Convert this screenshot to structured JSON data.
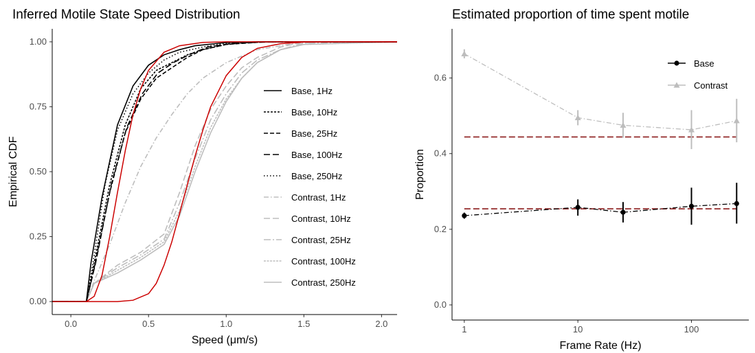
{
  "chart_data": [
    {
      "type": "line",
      "title": "Inferred Motile State Speed Distribution",
      "xlabel": "Speed (μm/s)",
      "ylabel": "Empirical CDF",
      "xlim": [
        -0.12,
        2.1
      ],
      "ylim": [
        -0.05,
        1.05
      ],
      "x_ticks": [
        0.0,
        0.5,
        1.0,
        1.5,
        2.0
      ],
      "x_tick_labels": [
        "0.0",
        "0.5",
        "1.0",
        "1.5",
        "2.0"
      ],
      "y_ticks": [
        0.0,
        0.25,
        0.5,
        0.75,
        1.0
      ],
      "y_tick_labels": [
        "0.00",
        "0.25",
        "0.50",
        "0.75",
        "1.00"
      ],
      "grid": false,
      "legend_position": "right-inside",
      "series": [
        {
          "name": "Base, 1Hz",
          "color": "#000000",
          "dash": "solid",
          "points": [
            [
              -0.12,
              0
            ],
            [
              0.1,
              0
            ],
            [
              0.13,
              0.15
            ],
            [
              0.2,
              0.4
            ],
            [
              0.3,
              0.68
            ],
            [
              0.4,
              0.83
            ],
            [
              0.5,
              0.91
            ],
            [
              0.6,
              0.95
            ],
            [
              0.7,
              0.97
            ],
            [
              0.8,
              0.985
            ],
            [
              1.0,
              0.997
            ],
            [
              1.2,
              1.0
            ],
            [
              2.1,
              1.0
            ]
          ]
        },
        {
          "name": "Base, 10Hz",
          "color": "#000000",
          "dash": "short-dash",
          "points": [
            [
              -0.12,
              0
            ],
            [
              0.1,
              0
            ],
            [
              0.15,
              0.15
            ],
            [
              0.25,
              0.45
            ],
            [
              0.35,
              0.68
            ],
            [
              0.45,
              0.82
            ],
            [
              0.55,
              0.89
            ],
            [
              0.65,
              0.92
            ],
            [
              0.75,
              0.95
            ],
            [
              0.85,
              0.97
            ],
            [
              1.0,
              0.99
            ],
            [
              1.2,
              1.0
            ],
            [
              2.1,
              1.0
            ]
          ]
        },
        {
          "name": "Base, 25Hz",
          "color": "#000000",
          "dash": "dash",
          "points": [
            [
              -0.12,
              0
            ],
            [
              0.1,
              0
            ],
            [
              0.15,
              0.13
            ],
            [
              0.25,
              0.42
            ],
            [
              0.35,
              0.65
            ],
            [
              0.45,
              0.78
            ],
            [
              0.55,
              0.86
            ],
            [
              0.65,
              0.9
            ],
            [
              0.75,
              0.94
            ],
            [
              0.85,
              0.97
            ],
            [
              1.0,
              0.99
            ],
            [
              1.25,
              1.0
            ],
            [
              2.1,
              1.0
            ]
          ]
        },
        {
          "name": "Base, 100Hz",
          "color": "#000000",
          "dash": "long-dash",
          "points": [
            [
              -0.12,
              0
            ],
            [
              0.1,
              0
            ],
            [
              0.16,
              0.15
            ],
            [
              0.26,
              0.45
            ],
            [
              0.36,
              0.67
            ],
            [
              0.46,
              0.8
            ],
            [
              0.56,
              0.88
            ],
            [
              0.66,
              0.92
            ],
            [
              0.76,
              0.95
            ],
            [
              0.88,
              0.98
            ],
            [
              1.05,
              0.995
            ],
            [
              1.3,
              1.0
            ],
            [
              2.1,
              1.0
            ]
          ]
        },
        {
          "name": "Base, 250Hz",
          "color": "#000000",
          "dash": "dotted",
          "points": [
            [
              -0.12,
              0
            ],
            [
              0.1,
              0
            ],
            [
              0.14,
              0.14
            ],
            [
              0.22,
              0.45
            ],
            [
              0.3,
              0.66
            ],
            [
              0.4,
              0.8
            ],
            [
              0.5,
              0.88
            ],
            [
              0.6,
              0.93
            ],
            [
              0.7,
              0.96
            ],
            [
              0.85,
              0.98
            ],
            [
              1.0,
              0.995
            ],
            [
              1.2,
              1.0
            ],
            [
              2.1,
              1.0
            ]
          ]
        },
        {
          "name": "Contrast, 1Hz",
          "color": "#bdbdbd",
          "dash": "dash-dot",
          "points": [
            [
              -0.12,
              0
            ],
            [
              0.1,
              0
            ],
            [
              0.15,
              0.08
            ],
            [
              0.25,
              0.22
            ],
            [
              0.35,
              0.38
            ],
            [
              0.45,
              0.52
            ],
            [
              0.55,
              0.63
            ],
            [
              0.65,
              0.72
            ],
            [
              0.75,
              0.8
            ],
            [
              0.85,
              0.86
            ],
            [
              1.0,
              0.92
            ],
            [
              1.2,
              0.97
            ],
            [
              1.4,
              0.99
            ],
            [
              1.6,
              1.0
            ],
            [
              2.1,
              1.0
            ]
          ]
        },
        {
          "name": "Contrast, 10Hz",
          "color": "#bdbdbd",
          "dash": "long-dash",
          "points": [
            [
              -0.12,
              0
            ],
            [
              0.1,
              0
            ],
            [
              0.15,
              0.07
            ],
            [
              0.3,
              0.14
            ],
            [
              0.45,
              0.19
            ],
            [
              0.6,
              0.26
            ],
            [
              0.7,
              0.42
            ],
            [
              0.8,
              0.6
            ],
            [
              0.9,
              0.74
            ],
            [
              1.0,
              0.83
            ],
            [
              1.1,
              0.9
            ],
            [
              1.2,
              0.94
            ],
            [
              1.35,
              0.98
            ],
            [
              1.5,
              1.0
            ],
            [
              2.1,
              1.0
            ]
          ]
        },
        {
          "name": "Contrast, 25Hz",
          "color": "#bdbdbd",
          "dash": "dash-dot-long",
          "points": [
            [
              -0.12,
              0
            ],
            [
              0.1,
              0
            ],
            [
              0.15,
              0.07
            ],
            [
              0.3,
              0.13
            ],
            [
              0.45,
              0.18
            ],
            [
              0.6,
              0.24
            ],
            [
              0.7,
              0.38
            ],
            [
              0.8,
              0.55
            ],
            [
              0.9,
              0.7
            ],
            [
              1.0,
              0.8
            ],
            [
              1.1,
              0.88
            ],
            [
              1.2,
              0.93
            ],
            [
              1.35,
              0.97
            ],
            [
              1.5,
              0.995
            ],
            [
              2.1,
              1.0
            ]
          ]
        },
        {
          "name": "Contrast, 100Hz",
          "color": "#bdbdbd",
          "dash": "dense-dash",
          "points": [
            [
              -0.12,
              0
            ],
            [
              0.1,
              0
            ],
            [
              0.15,
              0.07
            ],
            [
              0.3,
              0.12
            ],
            [
              0.45,
              0.17
            ],
            [
              0.6,
              0.23
            ],
            [
              0.7,
              0.35
            ],
            [
              0.8,
              0.52
            ],
            [
              0.9,
              0.67
            ],
            [
              1.0,
              0.78
            ],
            [
              1.1,
              0.86
            ],
            [
              1.2,
              0.92
            ],
            [
              1.35,
              0.97
            ],
            [
              1.5,
              0.99
            ],
            [
              2.1,
              1.0
            ]
          ]
        },
        {
          "name": "Contrast, 250Hz",
          "color": "#bdbdbd",
          "dash": "solid",
          "points": [
            [
              -0.12,
              0
            ],
            [
              0.1,
              0
            ],
            [
              0.15,
              0.07
            ],
            [
              0.3,
              0.11
            ],
            [
              0.45,
              0.16
            ],
            [
              0.6,
              0.22
            ],
            [
              0.7,
              0.33
            ],
            [
              0.8,
              0.5
            ],
            [
              0.9,
              0.65
            ],
            [
              1.0,
              0.77
            ],
            [
              1.1,
              0.86
            ],
            [
              1.2,
              0.92
            ],
            [
              1.35,
              0.97
            ],
            [
              1.5,
              0.99
            ],
            [
              2.1,
              1.0
            ]
          ]
        },
        {
          "name": "",
          "color": "#cc0000",
          "dash": "solid",
          "points": [
            [
              -0.12,
              0
            ],
            [
              0.1,
              0
            ],
            [
              0.15,
              0.02
            ],
            [
              0.2,
              0.1
            ],
            [
              0.25,
              0.25
            ],
            [
              0.3,
              0.42
            ],
            [
              0.35,
              0.58
            ],
            [
              0.4,
              0.72
            ],
            [
              0.45,
              0.82
            ],
            [
              0.5,
              0.89
            ],
            [
              0.6,
              0.96
            ],
            [
              0.7,
              0.985
            ],
            [
              0.85,
              0.998
            ],
            [
              1.0,
              1.0
            ],
            [
              2.1,
              1.0
            ]
          ]
        },
        {
          "name": "",
          "color": "#cc0000",
          "dash": "solid",
          "points": [
            [
              -0.12,
              0
            ],
            [
              0.1,
              0
            ],
            [
              0.3,
              0.0
            ],
            [
              0.4,
              0.005
            ],
            [
              0.5,
              0.03
            ],
            [
              0.55,
              0.07
            ],
            [
              0.6,
              0.14
            ],
            [
              0.65,
              0.23
            ],
            [
              0.7,
              0.34
            ],
            [
              0.75,
              0.45
            ],
            [
              0.8,
              0.56
            ],
            [
              0.85,
              0.66
            ],
            [
              0.9,
              0.75
            ],
            [
              1.0,
              0.87
            ],
            [
              1.1,
              0.94
            ],
            [
              1.2,
              0.975
            ],
            [
              1.35,
              0.993
            ],
            [
              1.5,
              0.999
            ],
            [
              1.7,
              1.0
            ],
            [
              2.1,
              1.0
            ]
          ]
        }
      ]
    },
    {
      "type": "scatter",
      "title": "Estimated proportion of time spent motile",
      "xlabel": "Frame Rate (Hz)",
      "ylabel": "Proportion",
      "x_scale": "log",
      "xlim": [
        0.78,
        320
      ],
      "ylim": [
        -0.04,
        0.73
      ],
      "x_ticks": [
        1,
        10,
        100
      ],
      "x_tick_labels": [
        "1",
        "10",
        "100"
      ],
      "y_ticks": [
        0.0,
        0.2,
        0.4,
        0.6
      ],
      "y_tick_labels": [
        "0.0",
        "0.2",
        "0.4",
        "0.6"
      ],
      "grid": false,
      "legend_position": "top-right",
      "x": [
        1,
        10,
        25,
        100,
        250
      ],
      "series": [
        {
          "name": "Base",
          "color": "#000000",
          "marker": "circle",
          "line": "dash-dot",
          "values": [
            0.236,
            0.258,
            0.245,
            0.261,
            0.268
          ],
          "err_low": [
            0.228,
            0.236,
            0.218,
            0.212,
            0.215
          ],
          "err_high": [
            0.244,
            0.279,
            0.272,
            0.31,
            0.323
          ]
        },
        {
          "name": "Contrast",
          "color": "#bdbdbd",
          "marker": "triangle",
          "line": "dash-dot",
          "values": [
            0.664,
            0.495,
            0.475,
            0.463,
            0.487
          ],
          "err_low": [
            0.652,
            0.475,
            0.442,
            0.412,
            0.43
          ],
          "err_high": [
            0.676,
            0.515,
            0.508,
            0.515,
            0.545
          ]
        }
      ],
      "reference_lines": [
        {
          "y": 0.254,
          "color": "#8b1a1a",
          "style": "long-dash"
        },
        {
          "y": 0.444,
          "color": "#8b1a1a",
          "style": "long-dash"
        }
      ]
    }
  ]
}
